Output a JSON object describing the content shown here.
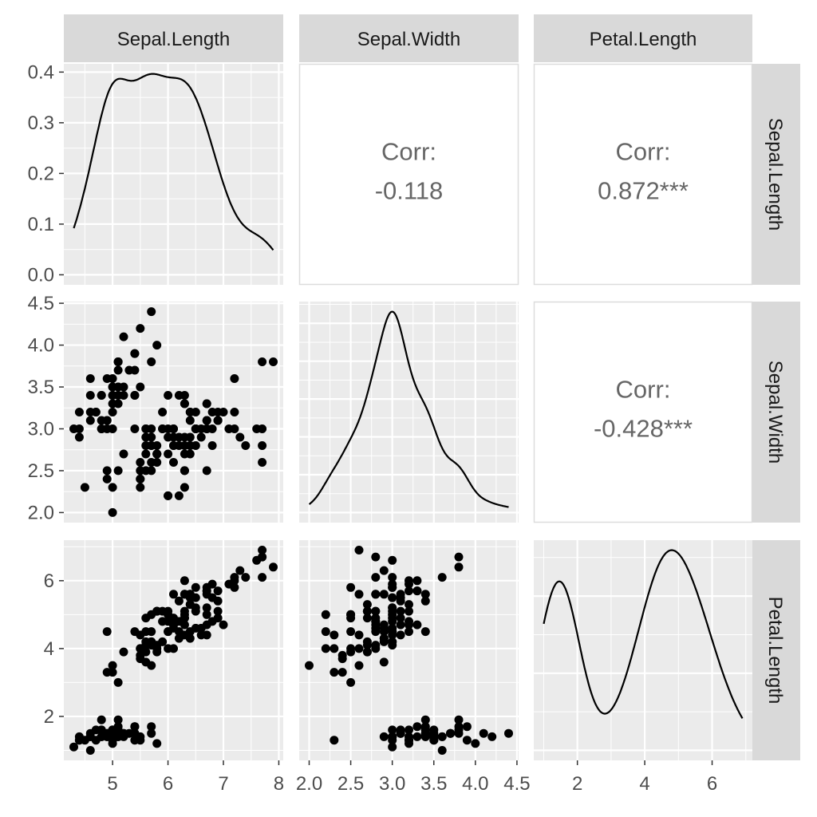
{
  "chart_data": {
    "type": "scatter-matrix",
    "variables": [
      "Sepal.Length",
      "Sepal.Width",
      "Petal.Length"
    ],
    "colors": {
      "panel_bg": "#ebebeb",
      "strip_bg": "#d9d9d9",
      "grid": "#ffffff",
      "points": "#000000",
      "corr_text": "#666666"
    },
    "axes": {
      "Sepal.Length": {
        "ticks": [
          5,
          6,
          7,
          8
        ],
        "tick_labels": [
          "5",
          "6",
          "7",
          "8"
        ]
      },
      "Sepal.Width": {
        "ticks": [
          2.0,
          2.5,
          3.0,
          3.5,
          4.0,
          4.5
        ],
        "tick_labels": [
          "2.0",
          "2.5",
          "3.0",
          "3.5",
          "4.0",
          "4.5"
        ]
      },
      "Petal.Length": {
        "ticks": [
          2,
          4,
          6
        ],
        "tick_labels": [
          "2",
          "4",
          "6"
        ]
      },
      "density_row1": {
        "ticks": [
          0,
          0.1,
          0.2,
          0.3,
          0.4
        ],
        "tick_labels": [
          "0.0",
          "0.1",
          "0.2",
          "0.3",
          "0.4"
        ]
      }
    },
    "correlations": [
      {
        "row": "Sepal.Length",
        "col": "Sepal.Width",
        "label": "Corr:",
        "value": "-0.118"
      },
      {
        "row": "Sepal.Length",
        "col": "Petal.Length",
        "label": "Corr:",
        "value": "0.872***"
      },
      {
        "row": "Sepal.Width",
        "col": "Petal.Length",
        "label": "Corr:",
        "value": "-0.428***"
      }
    ],
    "diagonal": "density",
    "data": {
      "Sepal.Length": [
        5.1,
        4.9,
        4.7,
        4.6,
        5.0,
        5.4,
        4.6,
        5.0,
        4.4,
        4.9,
        5.4,
        4.8,
        4.8,
        4.3,
        5.8,
        5.7,
        5.4,
        5.1,
        5.7,
        5.1,
        5.4,
        5.1,
        4.6,
        5.1,
        4.8,
        5.0,
        5.0,
        5.2,
        5.2,
        4.7,
        4.8,
        5.4,
        5.2,
        5.5,
        4.9,
        5.0,
        5.5,
        4.9,
        4.4,
        5.1,
        5.0,
        4.5,
        4.4,
        5.0,
        5.1,
        4.8,
        5.1,
        4.6,
        5.3,
        5.0,
        7.0,
        6.4,
        6.9,
        5.5,
        6.5,
        5.7,
        6.3,
        4.9,
        6.6,
        5.2,
        5.0,
        5.9,
        6.0,
        6.1,
        5.6,
        6.7,
        5.6,
        5.8,
        6.2,
        5.6,
        5.9,
        6.1,
        6.3,
        6.1,
        6.4,
        6.6,
        6.8,
        6.7,
        6.0,
        5.7,
        5.5,
        5.5,
        5.8,
        6.0,
        5.4,
        6.0,
        6.7,
        6.3,
        5.6,
        5.5,
        5.5,
        6.1,
        5.8,
        5.0,
        5.6,
        5.7,
        5.7,
        6.2,
        5.1,
        5.7,
        6.3,
        5.8,
        7.1,
        6.3,
        6.5,
        7.6,
        4.9,
        7.3,
        6.7,
        7.2,
        6.5,
        6.4,
        6.8,
        5.7,
        5.8,
        6.4,
        6.5,
        7.7,
        7.7,
        6.0,
        6.9,
        5.6,
        7.7,
        6.3,
        6.7,
        7.2,
        6.2,
        6.1,
        6.4,
        7.2,
        7.4,
        7.9,
        6.4,
        6.3,
        6.1,
        7.7,
        6.3,
        6.4,
        6.0,
        6.9,
        6.7,
        6.9,
        5.8,
        6.8,
        6.7,
        6.7,
        6.3,
        6.5,
        6.2,
        5.9
      ],
      "Sepal.Width": [
        3.5,
        3.0,
        3.2,
        3.1,
        3.6,
        3.9,
        3.4,
        3.4,
        2.9,
        3.1,
        3.7,
        3.4,
        3.0,
        3.0,
        4.0,
        4.4,
        3.9,
        3.5,
        3.8,
        3.8,
        3.4,
        3.7,
        3.6,
        3.3,
        3.4,
        3.0,
        3.4,
        3.5,
        3.4,
        3.2,
        3.1,
        3.4,
        4.1,
        4.2,
        3.1,
        3.2,
        3.5,
        3.6,
        3.0,
        3.4,
        3.5,
        2.3,
        3.2,
        3.5,
        3.8,
        3.0,
        3.8,
        3.2,
        3.7,
        3.3,
        3.2,
        3.2,
        3.1,
        2.3,
        2.8,
        2.8,
        3.3,
        2.4,
        2.9,
        2.7,
        2.0,
        3.0,
        2.2,
        2.9,
        2.9,
        3.1,
        3.0,
        2.7,
        2.2,
        2.5,
        3.2,
        2.8,
        2.5,
        2.8,
        2.9,
        3.0,
        2.8,
        3.0,
        2.9,
        2.6,
        2.4,
        2.4,
        2.7,
        2.7,
        3.0,
        3.4,
        3.1,
        2.3,
        3.0,
        2.5,
        2.6,
        3.0,
        2.6,
        2.3,
        2.7,
        3.0,
        2.9,
        2.9,
        2.5,
        2.8,
        3.3,
        2.7,
        3.0,
        2.9,
        3.0,
        3.0,
        2.5,
        2.9,
        2.5,
        3.6,
        3.2,
        2.7,
        3.0,
        2.5,
        2.8,
        3.2,
        3.0,
        3.8,
        2.6,
        2.2,
        3.2,
        2.8,
        2.8,
        2.7,
        3.3,
        3.2,
        2.8,
        3.0,
        2.8,
        3.0,
        2.8,
        3.8,
        2.8,
        2.8,
        2.6,
        3.0,
        3.4,
        3.1,
        3.0,
        3.1,
        3.1,
        3.1,
        2.7,
        3.2,
        3.3,
        3.0,
        2.5,
        3.0,
        3.4,
        3.0
      ],
      "Petal.Length": [
        1.4,
        1.4,
        1.3,
        1.5,
        1.4,
        1.7,
        1.4,
        1.5,
        1.4,
        1.5,
        1.5,
        1.6,
        1.4,
        1.1,
        1.2,
        1.5,
        1.3,
        1.4,
        1.7,
        1.5,
        1.7,
        1.5,
        1.0,
        1.7,
        1.9,
        1.6,
        1.6,
        1.5,
        1.4,
        1.6,
        1.6,
        1.5,
        1.5,
        1.4,
        1.5,
        1.2,
        1.3,
        1.4,
        1.3,
        1.5,
        1.3,
        1.3,
        1.3,
        1.6,
        1.9,
        1.4,
        1.6,
        1.4,
        1.5,
        1.4,
        4.7,
        4.5,
        4.9,
        4.0,
        4.6,
        4.5,
        4.7,
        3.3,
        4.6,
        3.9,
        3.5,
        4.2,
        4.0,
        4.7,
        3.6,
        4.4,
        4.5,
        4.1,
        4.5,
        3.9,
        4.8,
        4.0,
        4.9,
        4.7,
        4.3,
        4.4,
        4.8,
        5.0,
        4.5,
        3.5,
        3.8,
        3.7,
        3.9,
        5.1,
        4.5,
        4.5,
        4.7,
        4.4,
        4.1,
        4.0,
        4.4,
        4.6,
        4.0,
        3.3,
        4.2,
        4.2,
        4.2,
        4.3,
        3.0,
        4.1,
        6.0,
        5.1,
        5.9,
        5.6,
        5.8,
        6.6,
        4.5,
        6.3,
        5.8,
        6.1,
        5.1,
        5.3,
        5.5,
        5.0,
        5.1,
        5.3,
        5.5,
        6.7,
        6.9,
        5.0,
        5.7,
        4.9,
        6.7,
        4.9,
        5.7,
        6.0,
        4.8,
        4.9,
        5.6,
        5.8,
        6.1,
        6.4,
        5.6,
        5.1,
        5.6,
        6.1,
        5.6,
        5.5,
        4.8,
        5.4,
        5.6,
        5.1,
        5.1,
        5.9,
        5.7,
        5.2,
        5.0,
        5.2,
        5.4,
        5.1
      ]
    }
  }
}
